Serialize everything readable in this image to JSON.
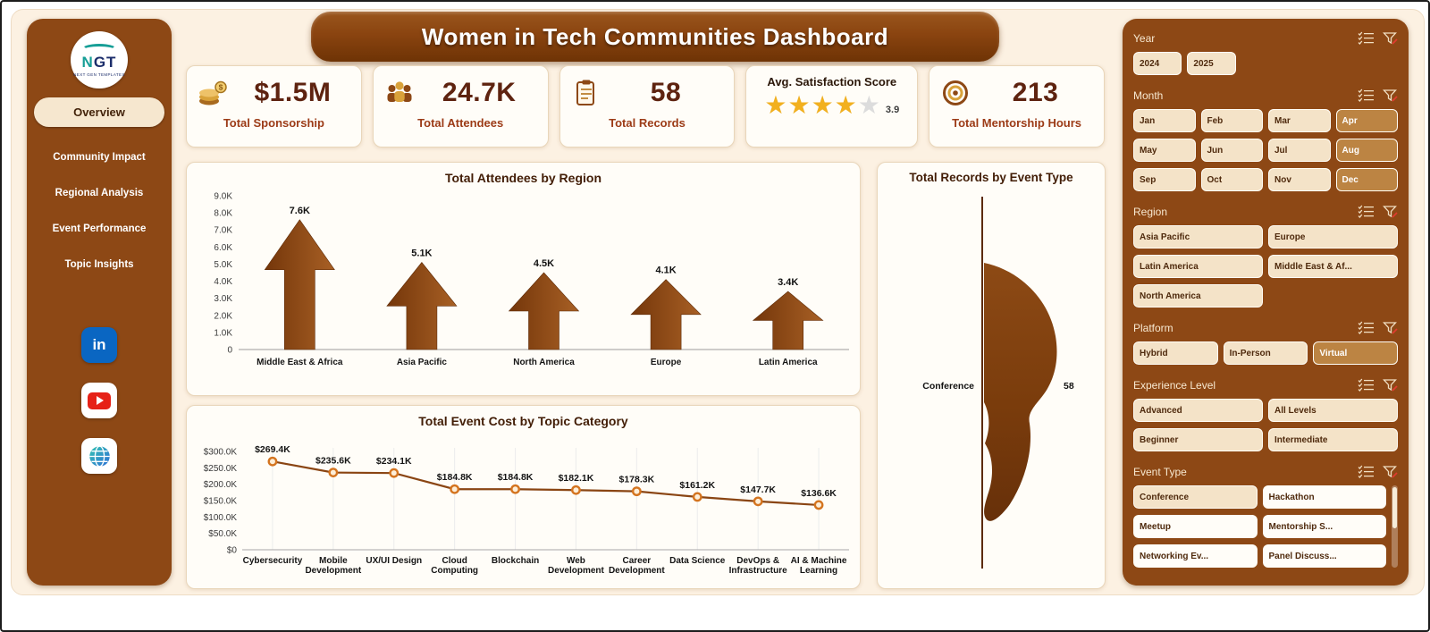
{
  "window": {
    "title": "Women in Tech Communities Dashboard"
  },
  "sidebar": {
    "logo_text": "NGT",
    "logo_subtext": "NEXT GEN TEMPLATES",
    "nav": [
      {
        "label": "Overview",
        "active": true
      },
      {
        "label": "Community Impact",
        "active": false
      },
      {
        "label": "Regional Analysis",
        "active": false
      },
      {
        "label": "Event Performance",
        "active": false
      },
      {
        "label": "Topic Insights",
        "active": false
      }
    ],
    "social": [
      {
        "name": "linkedin",
        "label": "in"
      },
      {
        "name": "youtube"
      },
      {
        "name": "website"
      }
    ]
  },
  "kpi_row": [
    {
      "type": "kpi",
      "icon": "sponsorship-icon",
      "value": "$1.5M",
      "label": "Total Sponsorship"
    },
    {
      "type": "kpi",
      "icon": "attendees-icon",
      "value": "24.7K",
      "label": "Total Attendees"
    },
    {
      "type": "kpi",
      "icon": "records-icon",
      "value": "58",
      "label": "Total Records"
    },
    {
      "type": "rating",
      "title": "Avg. Satisfaction Score",
      "rating": 3.9,
      "max": 5,
      "display": "3.9"
    },
    {
      "type": "kpi",
      "icon": "mentorship-icon",
      "value": "213",
      "label": "Total Mentorship Hours"
    }
  ],
  "chart_data": [
    {
      "type": "bar",
      "title": "Total Attendees by Region",
      "categories": [
        "Middle East & Africa",
        "Asia Pacific",
        "North America",
        "Europe",
        "Latin America"
      ],
      "values": [
        7600,
        5100,
        4500,
        4100,
        3400
      ],
      "labels": [
        "7.6K",
        "5.1K",
        "4.5K",
        "4.1K",
        "3.4K"
      ],
      "ylim": [
        0,
        9000
      ],
      "yticks": [
        "9.0K",
        "8.0K",
        "7.0K",
        "6.0K",
        "5.0K",
        "4.0K",
        "3.0K",
        "2.0K",
        "1.0K",
        "0"
      ]
    },
    {
      "type": "line",
      "title": "Total Event Cost by Topic Category",
      "categories": [
        "Cybersecurity",
        "Mobile Development",
        "UX/UI Design",
        "Cloud Computing",
        "Blockchain",
        "Web Development",
        "Career Development",
        "Data Science",
        "DevOps & Infrastructure",
        "AI & Machine Learning"
      ],
      "xlabel_lines": [
        [
          "Cybersecurity"
        ],
        [
          "Mobile",
          "Development"
        ],
        [
          "UX/UI Design"
        ],
        [
          "Cloud",
          "Computing"
        ],
        [
          "Blockchain"
        ],
        [
          "Web",
          "Development"
        ],
        [
          "Career",
          "Development"
        ],
        [
          "Data Science"
        ],
        [
          "DevOps &",
          "Infrastructure"
        ],
        [
          "AI & Machine",
          "Learning"
        ]
      ],
      "values": [
        269400,
        235600,
        234100,
        184800,
        184800,
        182100,
        178300,
        161200,
        147700,
        136600
      ],
      "labels": [
        "$269.4K",
        "$235.6K",
        "$234.1K",
        "$184.8K",
        "$184.8K",
        "$182.1K",
        "$178.3K",
        "$161.2K",
        "$147.7K",
        "$136.6K"
      ],
      "ylim": [
        0,
        300000
      ],
      "yticks": [
        "$300.0K",
        "$250.0K",
        "$200.0K",
        "$150.0K",
        "$100.0K",
        "$50.0K",
        "$0"
      ]
    },
    {
      "type": "funnel",
      "title": "Total Records by Event Type",
      "categories": [
        "Conference"
      ],
      "values": [
        58
      ],
      "labels": [
        "58"
      ]
    }
  ],
  "filters": {
    "sections": [
      {
        "label": "Year",
        "columns": 5,
        "items": [
          {
            "label": "2024",
            "style": "tan"
          },
          {
            "label": "2025",
            "style": "tan"
          }
        ]
      },
      {
        "label": "Month",
        "columns": 4,
        "items": [
          {
            "label": "Jan",
            "style": "tan"
          },
          {
            "label": "Feb",
            "style": "tan"
          },
          {
            "label": "Mar",
            "style": "tan"
          },
          {
            "label": "Apr",
            "style": "dark"
          },
          {
            "label": "May",
            "style": "tan"
          },
          {
            "label": "Jun",
            "style": "tan"
          },
          {
            "label": "Jul",
            "style": "tan"
          },
          {
            "label": "Aug",
            "style": "dark"
          },
          {
            "label": "Sep",
            "style": "tan"
          },
          {
            "label": "Oct",
            "style": "tan"
          },
          {
            "label": "Nov",
            "style": "tan"
          },
          {
            "label": "Dec",
            "style": "dark"
          }
        ]
      },
      {
        "label": "Region",
        "columns": 2,
        "items": [
          {
            "label": "Asia Pacific",
            "style": "tan"
          },
          {
            "label": "Europe",
            "style": "tan"
          },
          {
            "label": "Latin America",
            "style": "tan"
          },
          {
            "label": "Middle East & Af...",
            "style": "tan"
          },
          {
            "label": "North America",
            "style": "tan"
          }
        ]
      },
      {
        "label": "Platform",
        "columns": 3,
        "items": [
          {
            "label": "Hybrid",
            "style": "tan"
          },
          {
            "label": "In-Person",
            "style": "tan"
          },
          {
            "label": "Virtual",
            "style": "dark"
          }
        ]
      },
      {
        "label": "Experience Level",
        "columns": 2,
        "items": [
          {
            "label": "Advanced",
            "style": "tan"
          },
          {
            "label": "All Levels",
            "style": "tan"
          },
          {
            "label": "Beginner",
            "style": "tan"
          },
          {
            "label": "Intermediate",
            "style": "tan"
          }
        ]
      },
      {
        "label": "Event Type",
        "columns": 2,
        "scrollbar": true,
        "items": [
          {
            "label": "Conference",
            "style": "tan"
          },
          {
            "label": "Hackathon",
            "style": "white"
          },
          {
            "label": "Meetup",
            "style": "white"
          },
          {
            "label": "Mentorship S...",
            "style": "white"
          },
          {
            "label": "Networking Ev...",
            "style": "white"
          },
          {
            "label": "Panel Discuss...",
            "style": "white"
          }
        ]
      }
    ]
  }
}
